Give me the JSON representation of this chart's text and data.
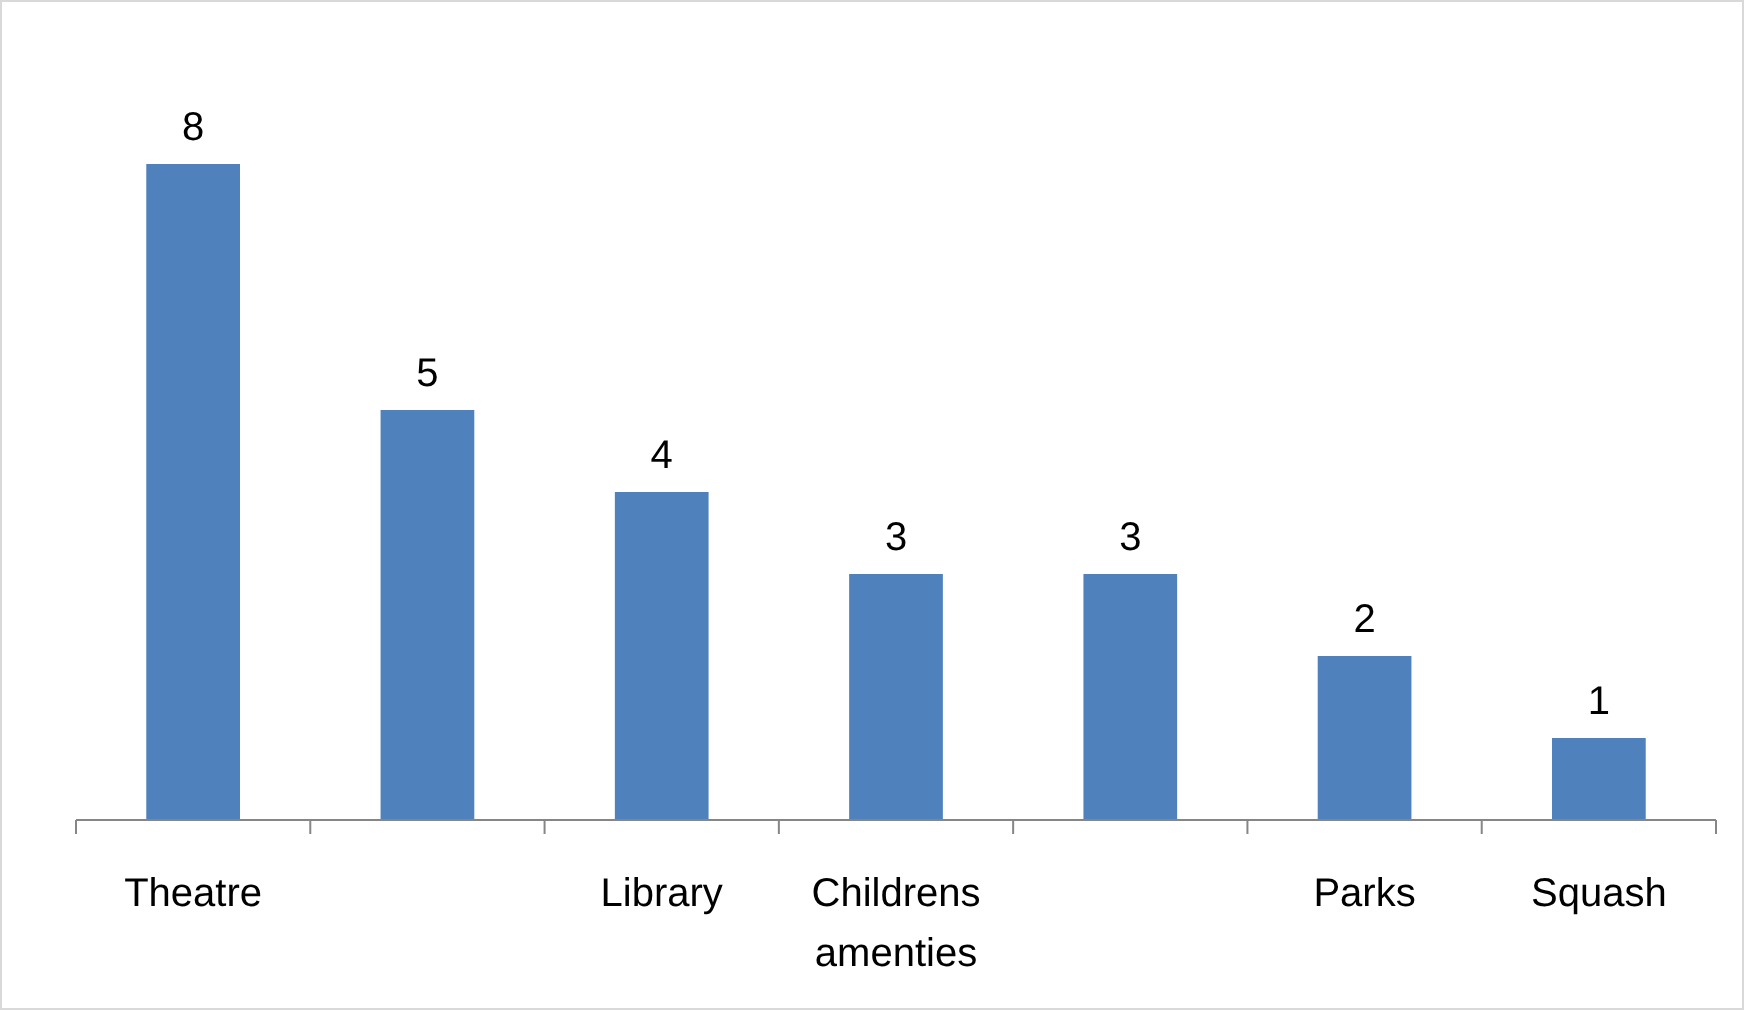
{
  "chart_data": {
    "type": "bar",
    "categories": [
      "Theatre",
      null,
      "Library",
      "Childrens amenties",
      null,
      "Parks",
      "Squash"
    ],
    "values": [
      8,
      5,
      4,
      3,
      3,
      2,
      1
    ],
    "color": "#4f81bd",
    "data_labels": true
  }
}
